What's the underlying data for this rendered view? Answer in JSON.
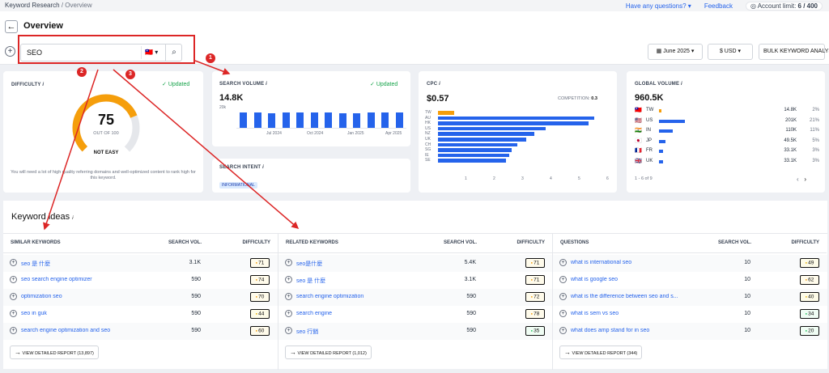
{
  "topbar": {
    "breadcrumb_root": "Keyword Research",
    "breadcrumb_sep": "/",
    "breadcrumb_current": "Overview",
    "questions": "Have any questions?",
    "feedback": "Feedback",
    "account_limit_label": "Account limit:",
    "account_limit_value": "6 / 400"
  },
  "header": {
    "title": "Overview",
    "search_value": "SEO",
    "date": "June 2025",
    "currency": "$ USD",
    "bulk": "BULK KEYWORD ANALYSIS"
  },
  "markers": [
    "1",
    "2",
    "3"
  ],
  "difficulty": {
    "label": "DIFFICULTY",
    "updated": "Updated",
    "value": "75",
    "out_of": "OUT OF 100",
    "rating": "NOT EASY",
    "fraction": 0.75,
    "note": "You will need a lot of high quality referring domains and well-optimized content to rank high for this keyword."
  },
  "search_volume": {
    "label": "SEARCH VOLUME",
    "updated": "Updated",
    "value": "14.8K",
    "y_tick": "20k",
    "x_labels": [
      "Jul 2024",
      "Oct 2024",
      "Jan 2025",
      "Apr 2025"
    ],
    "bars": [
      14,
      14,
      13,
      14,
      14,
      14,
      14,
      13,
      13,
      14,
      14,
      14
    ]
  },
  "search_intent": {
    "label": "SEARCH INTENT",
    "badge": "INFORMATIONAL"
  },
  "cpc": {
    "label": "CPC",
    "value": "$0.57",
    "competition_label": "COMPETITION:",
    "competition_value": "0.3",
    "countries": [
      "TW",
      "AU",
      "HK",
      "US",
      "NZ",
      "UK",
      "CH",
      "SG",
      "IE",
      "SE"
    ],
    "values": [
      0.57,
      5.5,
      5.3,
      3.8,
      3.4,
      3.1,
      2.8,
      2.6,
      2.5,
      2.4
    ],
    "x_ticks": [
      "1",
      "2",
      "3",
      "4",
      "5",
      "6"
    ],
    "xmax": 6,
    "accent": "#2563eb",
    "highlight": "#f59e0b"
  },
  "global_volume": {
    "label": "GLOBAL VOLUME",
    "value": "960.5K",
    "rows": [
      {
        "flag": "🇹🇼",
        "code": "TW",
        "volume": "14.8K",
        "pct": "2%",
        "share": 0.02
      },
      {
        "flag": "🇺🇸",
        "code": "US",
        "volume": "201K",
        "pct": "21%",
        "share": 0.21
      },
      {
        "flag": "🇮🇳",
        "code": "IN",
        "volume": "110K",
        "pct": "11%",
        "share": 0.11
      },
      {
        "flag": "🇯🇵",
        "code": "JP",
        "volume": "49.5K",
        "pct": "5%",
        "share": 0.05
      },
      {
        "flag": "🇫🇷",
        "code": "FR",
        "volume": "33.1K",
        "pct": "3%",
        "share": 0.03
      },
      {
        "flag": "🇬🇧",
        "code": "UK",
        "volume": "33.1K",
        "pct": "3%",
        "share": 0.03
      }
    ],
    "pagination": "1 - 6 of 9"
  },
  "ideas": {
    "title": "Keyword ideas",
    "columns": [
      {
        "name": "SIMILAR KEYWORDS",
        "vol_header": "SEARCH VOL.",
        "diff_header": "DIFFICULTY",
        "rows": [
          {
            "kw": "seo 是 什麼",
            "vol": "3.1K",
            "diff": "71",
            "tone": "or"
          },
          {
            "kw": "seo search engine optimizer",
            "vol": "590",
            "diff": "74",
            "tone": "or"
          },
          {
            "kw": "optimization seo",
            "vol": "590",
            "diff": "70",
            "tone": "or"
          },
          {
            "kw": "seo in guk",
            "vol": "590",
            "diff": "44",
            "tone": "ye"
          },
          {
            "kw": "search engine optimization and seo",
            "vol": "590",
            "diff": "60",
            "tone": "or"
          }
        ],
        "report": "VIEW DETAILED REPORT (13,897)"
      },
      {
        "name": "RELATED KEYWORDS",
        "vol_header": "SEARCH VOL.",
        "diff_header": "DIFFICULTY",
        "rows": [
          {
            "kw": "seo是什麼",
            "vol": "5.4K",
            "diff": "71",
            "tone": "or"
          },
          {
            "kw": "seo 是 什麼",
            "vol": "3.1K",
            "diff": "71",
            "tone": "or"
          },
          {
            "kw": "search engine optimization",
            "vol": "590",
            "diff": "72",
            "tone": "or"
          },
          {
            "kw": "search engine",
            "vol": "590",
            "diff": "78",
            "tone": "or"
          },
          {
            "kw": "seo 行銷",
            "vol": "590",
            "diff": "35",
            "tone": "gr"
          }
        ],
        "report": "VIEW DETAILED REPORT (1,012)"
      },
      {
        "name": "QUESTIONS",
        "vol_header": "SEARCH VOL.",
        "diff_header": "DIFFICULTY",
        "rows": [
          {
            "kw": "what is international seo",
            "vol": "10",
            "diff": "49",
            "tone": "ye"
          },
          {
            "kw": "what is google seo",
            "vol": "10",
            "diff": "62",
            "tone": "or"
          },
          {
            "kw": "what is the difference between seo and s...",
            "vol": "10",
            "diff": "40",
            "tone": "ye"
          },
          {
            "kw": "what is sem vs seo",
            "vol": "10",
            "diff": "34",
            "tone": "gr"
          },
          {
            "kw": "what does amp stand for in seo",
            "vol": "10",
            "diff": "20",
            "tone": "gr"
          }
        ],
        "report": "VIEW DETAILED REPORT (344)"
      }
    ]
  }
}
